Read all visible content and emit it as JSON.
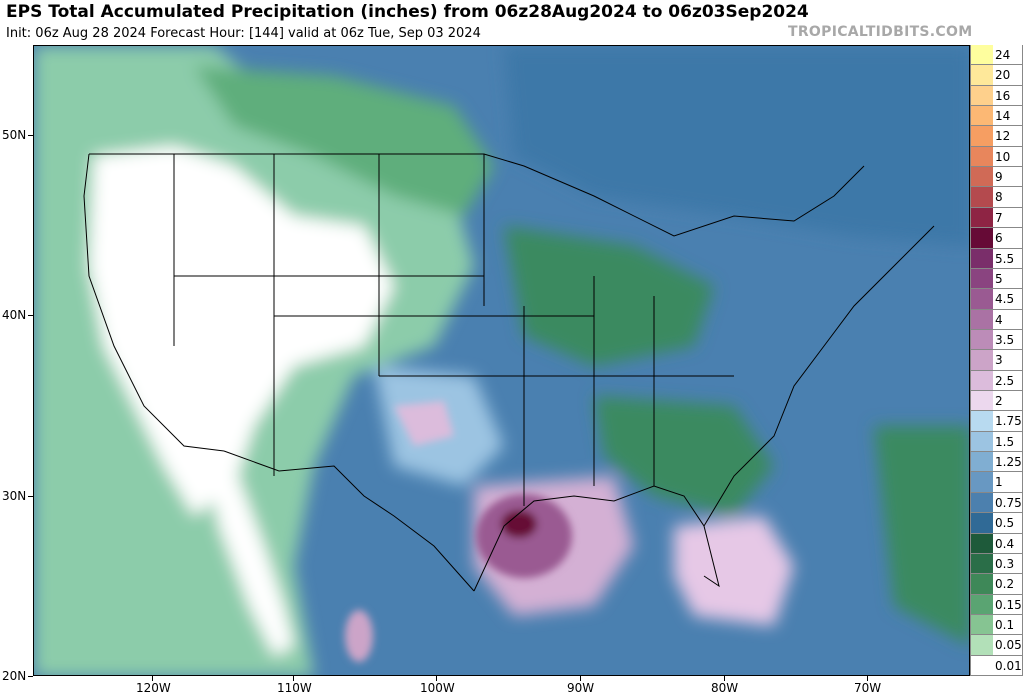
{
  "title": "EPS Total Accumulated Precipitation (inches) from 06z28Aug2024 to 06z03Sep2024",
  "subtitle": "Init: 06z Aug 28 2024   Forecast Hour: [144]   valid at 06z Tue, Sep 03 2024",
  "brand": "TROPICALTIDBITS.COM",
  "lat_labels": [
    "50N",
    "40N",
    "30N",
    "20N"
  ],
  "lon_labels": [
    "120W",
    "110W",
    "100W",
    "90W",
    "80W",
    "70W"
  ],
  "colorbar": [
    {
      "label": "24",
      "color": "#fefe9e"
    },
    {
      "label": "20",
      "color": "#fee89a"
    },
    {
      "label": "16",
      "color": "#fed08c"
    },
    {
      "label": "14",
      "color": "#fcb874"
    },
    {
      "label": "12",
      "color": "#f69e62"
    },
    {
      "label": "10",
      "color": "#e8865c"
    },
    {
      "label": "9",
      "color": "#d06a56"
    },
    {
      "label": "8",
      "color": "#b44a4e"
    },
    {
      "label": "7",
      "color": "#8e2444"
    },
    {
      "label": "6",
      "color": "#660a36"
    },
    {
      "label": "5.5",
      "color": "#7a2e6a"
    },
    {
      "label": "5",
      "color": "#8a4480"
    },
    {
      "label": "4.5",
      "color": "#9a5a92"
    },
    {
      "label": "4",
      "color": "#aa72a4"
    },
    {
      "label": "3.5",
      "color": "#bc8cb8"
    },
    {
      "label": "3",
      "color": "#cca4c8"
    },
    {
      "label": "2.5",
      "color": "#dcbcdc"
    },
    {
      "label": "2",
      "color": "#ecd8ee"
    },
    {
      "label": "1.75",
      "color": "#b8daf0"
    },
    {
      "label": "1.5",
      "color": "#9cc4e2"
    },
    {
      "label": "1.25",
      "color": "#80aed2"
    },
    {
      "label": "1",
      "color": "#6898c2"
    },
    {
      "label": "0.75",
      "color": "#4c80ae"
    },
    {
      "label": "0.5",
      "color": "#306a96"
    },
    {
      "label": "0.4",
      "color": "#1e5a3a"
    },
    {
      "label": "0.3",
      "color": "#2a6e48"
    },
    {
      "label": "0.2",
      "color": "#3e8858"
    },
    {
      "label": "0.15",
      "color": "#5aa472"
    },
    {
      "label": "0.1",
      "color": "#86c492"
    },
    {
      "label": "0.05",
      "color": "#b2e0b8"
    },
    {
      "label": "0.01",
      "color": "#ffffff"
    }
  ]
}
